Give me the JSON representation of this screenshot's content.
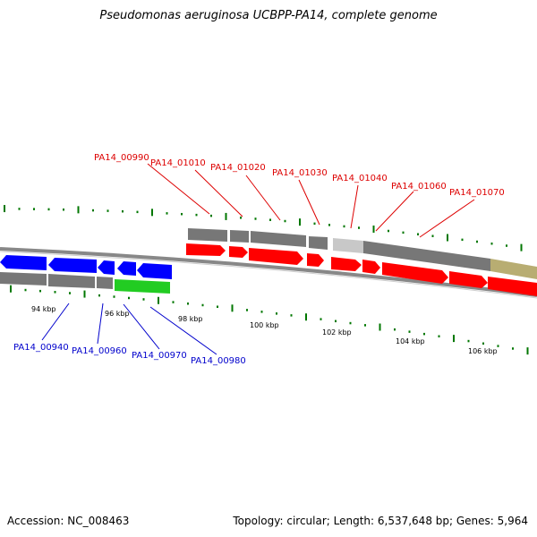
{
  "title": "Pseudomonas aeruginosa UCBPP-PA14, complete genome",
  "accession": "Accession: NC_008463",
  "topology": "Topology: circular; Length: 6,537,648 bp; Genes: 5,964",
  "colors": {
    "forward_label": "#dd0000",
    "reverse_label": "#0000cc",
    "forward_gene": "#ff0000",
    "reverse_gene": "#0000ff",
    "highlight_gene": "#22cc22",
    "grey_gene": "#777777",
    "light_gene": "#c8c8c8",
    "tan_gene": "#b8ad72",
    "tick": "#007700"
  },
  "forward_labels": [
    "PA14_00990",
    "PA14_01010",
    "PA14_01020",
    "PA14_01030",
    "PA14_01040",
    "PA14_01060",
    "PA14_01070"
  ],
  "reverse_labels": [
    "PA14_00940",
    "PA14_00960",
    "PA14_00970",
    "PA14_00980"
  ],
  "scale_ticks": [
    "94 kbp",
    "96 kbp",
    "98 kbp",
    "100 kbp",
    "102 kbp",
    "104 kbp",
    "106 kbp"
  ]
}
